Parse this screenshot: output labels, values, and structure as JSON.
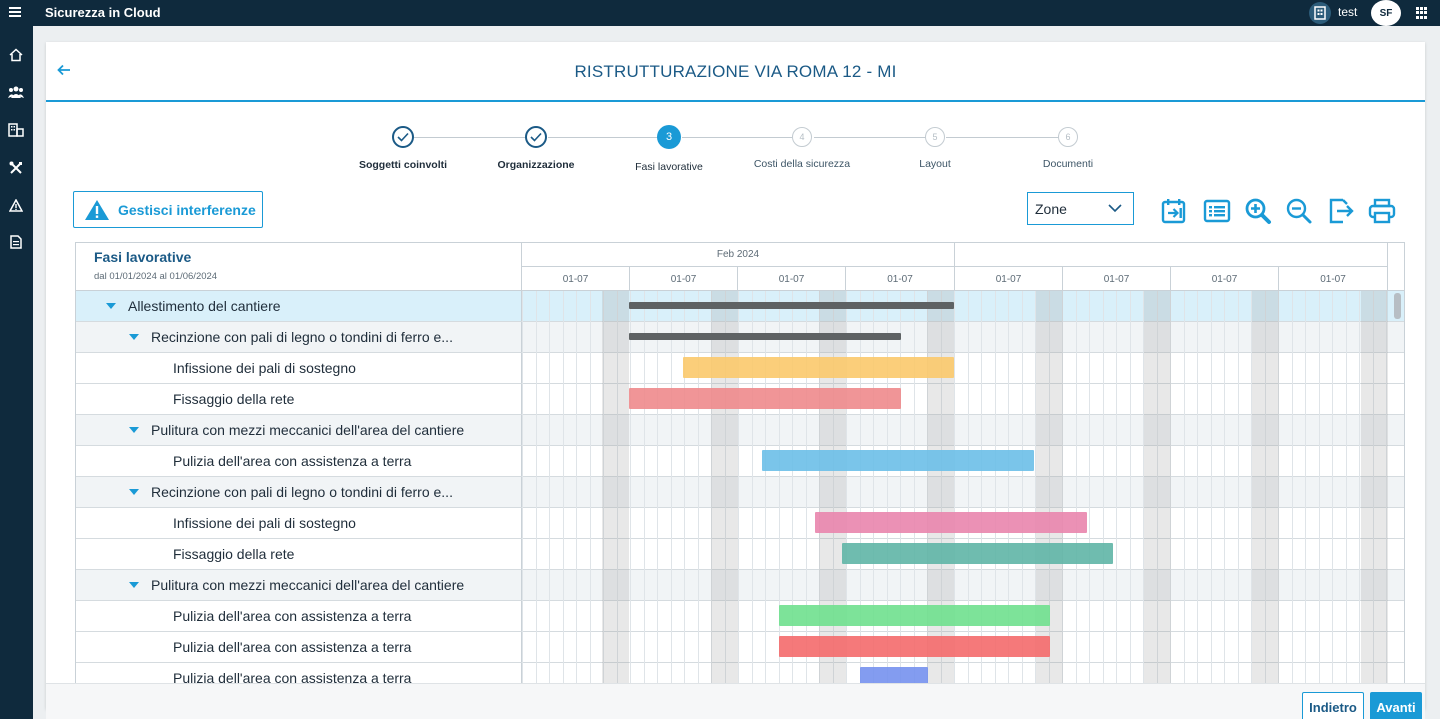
{
  "app": {
    "title": "Sicurezza in Cloud",
    "user_name": "test",
    "avatar_initials": "SF",
    "accent": "#1a9ad6",
    "dark": "#0f2a3d"
  },
  "rail": {
    "icons": [
      "home-icon",
      "users-icon",
      "buildings-icon",
      "tools-icon",
      "warning-icon",
      "document-icon"
    ]
  },
  "page": {
    "title": "RISTRUTTURAZIONE VIA ROMA 12 - MI"
  },
  "stepper": {
    "steps": [
      {
        "number": "",
        "label": "Soggetti coinvolti",
        "state": "done"
      },
      {
        "number": "",
        "label": "Organizzazione",
        "state": "done"
      },
      {
        "number": "3",
        "label": "Fasi lavorative",
        "state": "active"
      },
      {
        "number": "4",
        "label": "Costi della sicurezza",
        "state": "todo"
      },
      {
        "number": "5",
        "label": "Layout",
        "state": "todo"
      },
      {
        "number": "6",
        "label": "Documenti",
        "state": "todo"
      }
    ]
  },
  "toolbar": {
    "interference_button": "Gestisci interferenze",
    "zone_select_value": "Zone",
    "icons": [
      "calendar-goto-icon",
      "list-view-icon",
      "zoom-in-icon",
      "zoom-out-icon",
      "export-icon",
      "print-icon"
    ]
  },
  "gantt": {
    "left_header_title": "Fasi lavorative",
    "left_header_range": "dal 01/01/2024 al 01/06/2024",
    "month_label": "Feb 2024",
    "week_labels": [
      "01-07",
      "01-07",
      "01-07",
      "01-07",
      "01-07",
      "01-07",
      "01-07",
      "01-07"
    ],
    "rows": [
      {
        "name": "Allestimento del cantiere",
        "type": "group",
        "level": 0,
        "selected": true
      },
      {
        "name": "Recinzione   con pali di legno o tondini di ferro e...",
        "type": "group",
        "level": 1
      },
      {
        "name": "Infissione   dei pali di sostegno",
        "type": "task",
        "level": 2
      },
      {
        "name": "Fissaggio   della rete",
        "type": "task",
        "level": 2
      },
      {
        "name": "Pulitura   con mezzi meccanici dell'area del cantiere",
        "type": "group",
        "level": 1
      },
      {
        "name": "Pulizia   dell'area con assistenza a terra",
        "type": "task",
        "level": 2
      },
      {
        "name": "Recinzione   con pali di legno o tondini di ferro e...",
        "type": "group",
        "level": 1
      },
      {
        "name": "Infissione   dei pali di sostegno",
        "type": "task",
        "level": 2
      },
      {
        "name": "Fissaggio   della rete",
        "type": "task",
        "level": 2
      },
      {
        "name": "Pulitura   con mezzi meccanici dell'area del cantiere",
        "type": "group",
        "level": 1
      },
      {
        "name": "Pulizia   dell'area con assistenza a terra",
        "type": "task",
        "level": 2
      },
      {
        "name": "Pulizia   dell'area con assistenza a terra",
        "type": "task",
        "level": 2
      },
      {
        "name": "Pulizia   dell'area con assistenza a terra",
        "type": "task",
        "level": 2
      }
    ],
    "bar_colors": {
      "summary": "#5e6264",
      "r2": "#fbc96b",
      "r3": "#ee8a8c",
      "r5": "#6cbfe8",
      "r7": "#e985ad",
      "r8": "#5fb5a6",
      "r10": "#6fe08e",
      "r11": "#f46a6c",
      "r12": "#7591ee"
    }
  },
  "footer": {
    "back_label": "Indietro",
    "next_label": "Avanti"
  }
}
